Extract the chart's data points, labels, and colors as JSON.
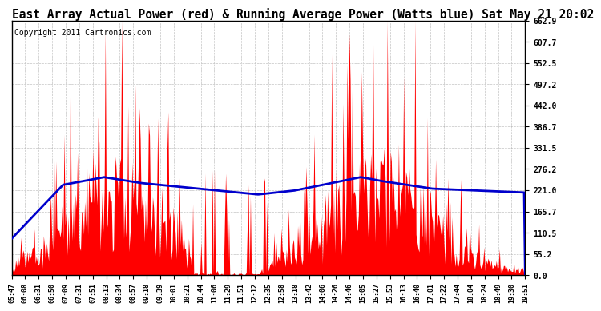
{
  "title": "East Array Actual Power (red) & Running Average Power (Watts blue) Sat May 21 20:02",
  "copyright": "Copyright 2011 Cartronics.com",
  "yticks": [
    0.0,
    55.2,
    110.5,
    165.7,
    221.0,
    276.2,
    331.5,
    386.7,
    442.0,
    497.2,
    552.5,
    607.7,
    662.9
  ],
  "ymax": 662.9,
  "ymin": 0.0,
  "xtick_labels": [
    "05:47",
    "06:08",
    "06:31",
    "06:50",
    "07:09",
    "07:31",
    "07:51",
    "08:13",
    "08:34",
    "08:57",
    "09:18",
    "09:39",
    "10:01",
    "10:21",
    "10:44",
    "11:06",
    "11:29",
    "11:51",
    "12:12",
    "12:35",
    "12:58",
    "13:18",
    "13:42",
    "14:06",
    "14:26",
    "14:46",
    "15:05",
    "15:27",
    "15:53",
    "16:13",
    "16:40",
    "17:01",
    "17:22",
    "17:44",
    "18:04",
    "18:24",
    "18:49",
    "19:30",
    "19:51"
  ],
  "bar_color": "#ff0000",
  "line_color": "#0000cc",
  "bg_color": "#ffffff",
  "grid_color": "#aaaaaa",
  "title_fontsize": 10.5,
  "copyright_fontsize": 7,
  "tick_fontsize": 7
}
